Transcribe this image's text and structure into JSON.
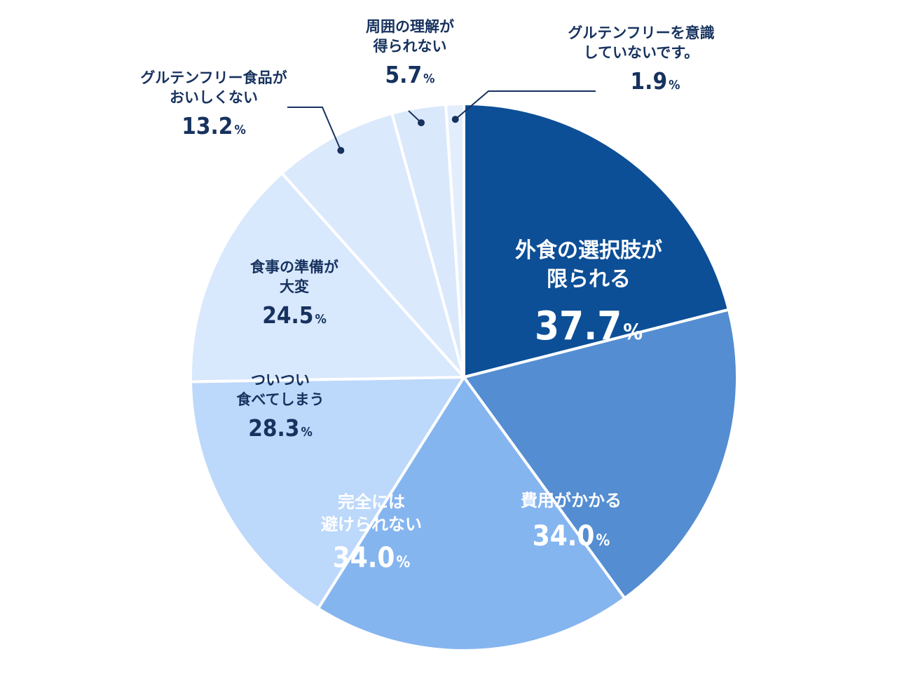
{
  "chart_data": {
    "type": "pie",
    "title": "",
    "unit": "%",
    "slices": [
      {
        "name": "外食の選択肢が限られる",
        "lines": [
          "外食の選択肢が",
          "限られる"
        ],
        "value": 37.7,
        "color": "#0d4f96"
      },
      {
        "name": "費用がかかる",
        "lines": [
          "費用がかかる"
        ],
        "value": 34.0,
        "color": "#548dd1"
      },
      {
        "name": "完全には避けられない",
        "lines": [
          "完全には",
          "避けられない"
        ],
        "value": 34.0,
        "color": "#85b5ef"
      },
      {
        "name": "ついつい食べてしまう",
        "lines": [
          "ついつい",
          "食べてしまう"
        ],
        "value": 28.3,
        "color": "#bcd8fb"
      },
      {
        "name": "食事の準備が大変",
        "lines": [
          "食事の準備が",
          "大変"
        ],
        "value": 24.5,
        "color": "#d8e8fd"
      },
      {
        "name": "グルテンフリー食品がおいしくない",
        "lines": [
          "グルテンフリー食品が",
          "おいしくない"
        ],
        "value": 13.2,
        "color": "#dbe9fd"
      },
      {
        "name": "周囲の理解が得られない",
        "lines": [
          "周囲の理解が",
          "得られない"
        ],
        "value": 5.7,
        "color": "#dae8fc"
      },
      {
        "name": "グルテンフリーを意識していないです。",
        "lines": [
          "グルテンフリーを意識",
          "していないです。"
        ],
        "value": 1.9,
        "color": "#e3eefd"
      }
    ]
  }
}
